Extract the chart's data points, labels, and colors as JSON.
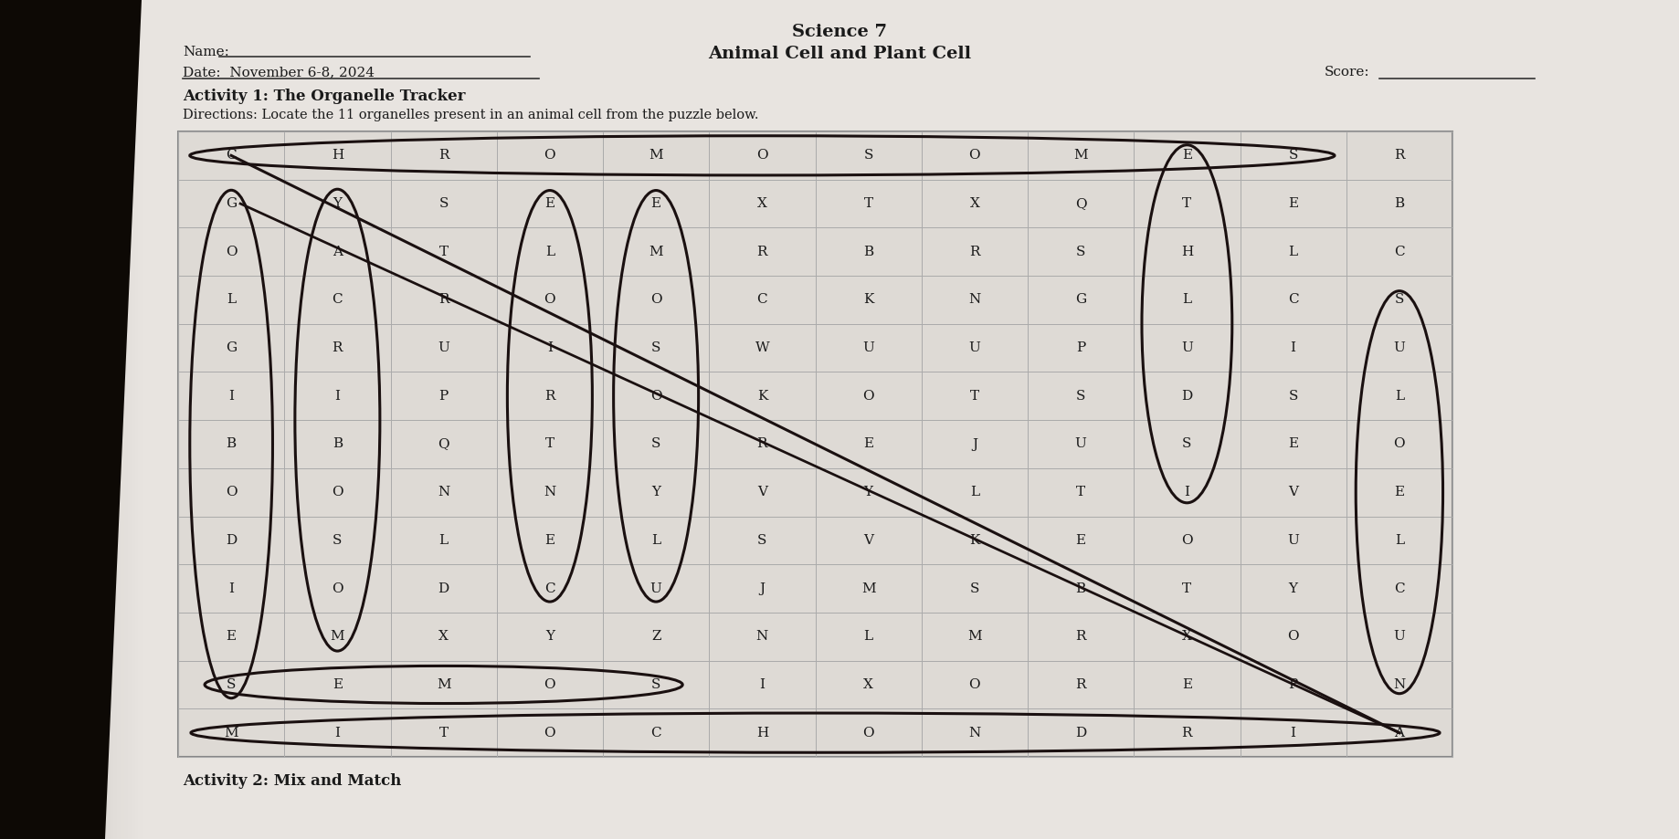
{
  "title": "Science 7",
  "subtitle": "Animal Cell and Plant Cell",
  "name_label": "Name:",
  "date_label": "Date:  November 6-8, 2024",
  "score_label": "Score:",
  "activity1_title": "Activity 1: The Organelle Tracker",
  "directions": "Directions: Locate the 11 organelles present in an animal cell from the puzzle below.",
  "activity2_title": "Activity 2: Mix and Match",
  "paper_color": "#e8e4e0",
  "dark_left_color": "#1a1008",
  "grid_bg": "#dedad4",
  "grid_line_color": "#aaaaaa",
  "text_color": "#1a1a1a",
  "ink_color": "#1a1010",
  "grid": [
    [
      "C",
      "H",
      "R",
      "O",
      "M",
      "O",
      "S",
      "O",
      "M",
      "E",
      "S",
      "R"
    ],
    [
      "G",
      "Y",
      "S",
      "E",
      "E",
      "X",
      "T",
      "X",
      "Q",
      "T",
      "E",
      "B"
    ],
    [
      "O",
      "A",
      "T",
      "L",
      "M",
      "R",
      "B",
      "R",
      "S",
      "H",
      "L",
      "C"
    ],
    [
      "L",
      "C",
      "R",
      "O",
      "O",
      "C",
      "K",
      "N",
      "G",
      "L",
      "C",
      "S"
    ],
    [
      "G",
      "R",
      "U",
      "I",
      "S",
      "W",
      "U",
      "U",
      "P",
      "U",
      "I",
      "U"
    ],
    [
      "I",
      "I",
      "P",
      "R",
      "O",
      "K",
      "O",
      "T",
      "S",
      "D",
      "S",
      "L"
    ],
    [
      "B",
      "B",
      "Q",
      "T",
      "S",
      "R",
      "E",
      "J",
      "U",
      "S",
      "E",
      "O"
    ],
    [
      "O",
      "O",
      "N",
      "N",
      "Y",
      "V",
      "Y",
      "L",
      "T",
      "I",
      "V",
      "E"
    ],
    [
      "D",
      "S",
      "L",
      "E",
      "L",
      "S",
      "V",
      "K",
      "E",
      "O",
      "U",
      "L"
    ],
    [
      "I",
      "O",
      "D",
      "C",
      "U",
      "J",
      "M",
      "S",
      "B",
      "T",
      "Y",
      "C"
    ],
    [
      "E",
      "M",
      "X",
      "Y",
      "Z",
      "N",
      "L",
      "M",
      "R",
      "X",
      "O",
      "U"
    ],
    [
      "S",
      "E",
      "M",
      "O",
      "S",
      "I",
      "X",
      "O",
      "R",
      "E",
      "P",
      "N"
    ],
    [
      "M",
      "I",
      "T",
      "O",
      "C",
      "H",
      "O",
      "N",
      "D",
      "R",
      "I",
      "A"
    ]
  ],
  "ncols": 12,
  "nrows": 13
}
